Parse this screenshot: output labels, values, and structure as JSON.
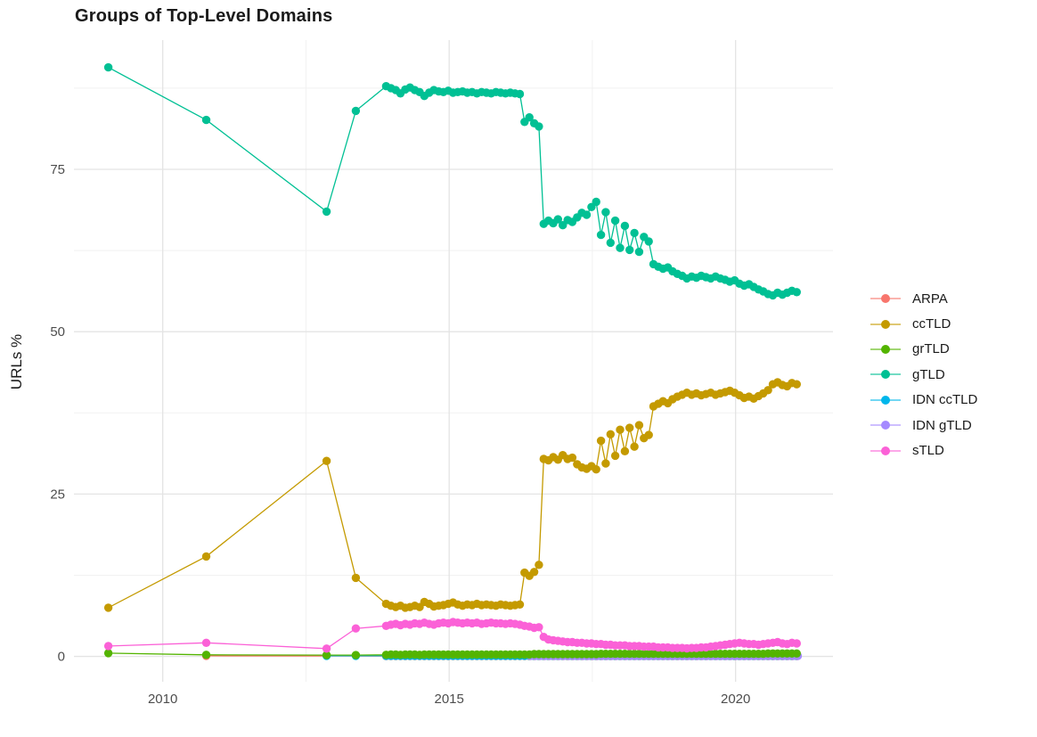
{
  "title": "Groups of Top-Level Domains",
  "chart_data": {
    "type": "line",
    "title": "Groups of Top-Level Domains",
    "xlabel": "",
    "ylabel": "URLs %",
    "xlim": [
      2008.45,
      2021.7
    ],
    "ylim": [
      -3.9,
      94.9
    ],
    "x_ticks": [
      {
        "v": 2010,
        "label": "2010"
      },
      {
        "v": 2015,
        "label": "2015"
      },
      {
        "v": 2020,
        "label": "2020"
      }
    ],
    "x_minor_ticks": [
      2012.5,
      2017.5
    ],
    "y_ticks": [
      {
        "v": 0,
        "label": "0"
      },
      {
        "v": 25,
        "label": "25"
      },
      {
        "v": 50,
        "label": "50"
      },
      {
        "v": 75,
        "label": "75"
      }
    ],
    "y_minor_ticks": [
      12.5,
      37.5,
      62.5,
      87.5
    ],
    "grid": true,
    "legend_position": "right",
    "colors": {
      "major_grid": "#e4e4e4",
      "minor_grid": "#f1f1f1",
      "tick_label": "#4d4d4d",
      "title_text": "#1a1a1a"
    },
    "draw_order": [
      "ARPA",
      "IDN ccTLD",
      "IDN gTLD",
      "grTLD",
      "sTLD",
      "ccTLD",
      "gTLD"
    ],
    "series": [
      {
        "name": "ARPA",
        "color": "#F8766D",
        "early": [
          [
            2010.76,
            0.1
          ]
        ],
        "dense": {
          "start": 2013.9,
          "step": 0.08333,
          "const": 0.05,
          "count": 87
        }
      },
      {
        "name": "ccTLD",
        "color": "#C49A00",
        "early": [
          [
            2009.05,
            7.5
          ],
          [
            2010.76,
            15.4
          ],
          [
            2012.86,
            30.1
          ],
          [
            2013.37,
            12.1
          ]
        ],
        "dense": {
          "start": 2013.9,
          "step": 0.08333,
          "values": [
            8.1,
            7.8,
            7.6,
            7.8,
            7.5,
            7.6,
            7.8,
            7.6,
            8.4,
            8.1,
            7.7,
            7.8,
            7.9,
            8.1,
            8.3,
            8.0,
            7.8,
            8.0,
            7.9,
            8.1,
            7.9,
            8.0,
            7.9,
            7.8,
            8.0,
            7.9,
            7.8,
            7.9,
            8.0,
            12.9,
            12.4,
            13.0,
            14.1,
            30.4,
            30.2,
            30.7,
            30.3,
            31.0,
            30.4,
            30.6,
            29.6,
            29.1,
            28.9,
            29.3,
            28.8,
            33.2,
            29.7,
            34.2,
            30.9,
            34.9,
            31.6,
            35.2,
            32.3,
            35.6,
            33.6,
            34.1,
            38.5,
            38.9,
            39.3,
            39.0,
            39.6,
            40.0,
            40.3,
            40.6,
            40.3,
            40.5,
            40.2,
            40.4,
            40.6,
            40.3,
            40.5,
            40.7,
            40.9,
            40.6,
            40.2,
            39.8,
            40.0,
            39.7,
            40.1,
            40.5,
            41.0,
            41.9,
            42.2,
            41.8,
            41.6,
            42.1,
            41.9
          ]
        }
      },
      {
        "name": "grTLD",
        "color": "#53B400",
        "early": [
          [
            2009.05,
            0.5
          ],
          [
            2010.76,
            0.25
          ],
          [
            2012.86,
            0.2
          ],
          [
            2013.37,
            0.2
          ]
        ],
        "dense": {
          "start": 2013.9,
          "step": 0.08333,
          "values": [
            0.25,
            0.3,
            0.3,
            0.25,
            0.3,
            0.3,
            0.3,
            0.25,
            0.3,
            0.3,
            0.3,
            0.3,
            0.3,
            0.3,
            0.3,
            0.3,
            0.3,
            0.3,
            0.3,
            0.3,
            0.3,
            0.3,
            0.3,
            0.3,
            0.3,
            0.3,
            0.3,
            0.3,
            0.3,
            0.3,
            0.3,
            0.35,
            0.35,
            0.35,
            0.35,
            0.35,
            0.35,
            0.35,
            0.35,
            0.35,
            0.35,
            0.35,
            0.35,
            0.35,
            0.35,
            0.4,
            0.4,
            0.4,
            0.4,
            0.4,
            0.4,
            0.4,
            0.4,
            0.4,
            0.4,
            0.4,
            0.4,
            0.4,
            0.4,
            0.4,
            0.4,
            0.4,
            0.4,
            0.4,
            0.4,
            0.4,
            0.4,
            0.4,
            0.4,
            0.4,
            0.4,
            0.4,
            0.4,
            0.4,
            0.4,
            0.4,
            0.4,
            0.4,
            0.4,
            0.4,
            0.45,
            0.45,
            0.45,
            0.45,
            0.45,
            0.45,
            0.45
          ]
        }
      },
      {
        "name": "gTLD",
        "color": "#00C094",
        "early": [
          [
            2009.05,
            90.7
          ],
          [
            2010.76,
            82.6
          ],
          [
            2012.86,
            68.5
          ],
          [
            2013.37,
            84.0
          ]
        ],
        "dense": {
          "start": 2013.9,
          "step": 0.08333,
          "values": [
            87.8,
            87.5,
            87.2,
            86.7,
            87.3,
            87.6,
            87.2,
            86.9,
            86.3,
            86.8,
            87.2,
            87.0,
            86.9,
            87.1,
            86.8,
            86.9,
            87.0,
            86.8,
            86.9,
            86.7,
            86.9,
            86.8,
            86.7,
            86.9,
            86.8,
            86.7,
            86.8,
            86.7,
            86.6,
            82.3,
            83.0,
            82.1,
            81.6,
            66.6,
            67.1,
            66.7,
            67.3,
            66.4,
            67.2,
            66.9,
            67.6,
            68.3,
            68.0,
            69.2,
            70.0,
            64.9,
            68.4,
            63.7,
            67.1,
            62.9,
            66.3,
            62.6,
            65.2,
            62.3,
            64.6,
            63.9,
            60.4,
            60.0,
            59.7,
            59.9,
            59.3,
            58.9,
            58.6,
            58.2,
            58.5,
            58.3,
            58.6,
            58.4,
            58.2,
            58.5,
            58.2,
            58.0,
            57.7,
            57.9,
            57.4,
            57.1,
            57.3,
            56.9,
            56.5,
            56.2,
            55.8,
            55.6,
            56.0,
            55.7,
            56.0,
            56.3,
            56.1
          ]
        }
      },
      {
        "name": "IDN ccTLD",
        "color": "#00B6EB",
        "early": [
          [
            2012.86,
            0.1
          ],
          [
            2013.37,
            0.1
          ]
        ],
        "dense": {
          "start": 2013.9,
          "step": 0.08333,
          "const": 0.1,
          "count": 87
        }
      },
      {
        "name": "IDN gTLD",
        "color": "#A58AFF",
        "early": [],
        "dense": {
          "start": 2016.42,
          "step": 0.08333,
          "const": 0.08,
          "count": 57
        }
      },
      {
        "name": "sTLD",
        "color": "#FB61D7",
        "early": [
          [
            2009.05,
            1.6
          ],
          [
            2010.76,
            2.1
          ],
          [
            2012.86,
            1.2
          ],
          [
            2013.37,
            4.3
          ]
        ],
        "dense": {
          "start": 2013.9,
          "step": 0.08333,
          "values": [
            4.7,
            4.9,
            5.0,
            4.8,
            5.0,
            4.9,
            5.1,
            5.0,
            5.2,
            5.0,
            4.9,
            5.1,
            5.2,
            5.1,
            5.3,
            5.2,
            5.1,
            5.2,
            5.1,
            5.2,
            5.0,
            5.1,
            5.2,
            5.1,
            5.1,
            5.0,
            5.1,
            5.0,
            4.9,
            4.7,
            4.6,
            4.4,
            4.5,
            3.0,
            2.6,
            2.5,
            2.4,
            2.3,
            2.2,
            2.2,
            2.1,
            2.1,
            2.0,
            2.0,
            1.9,
            1.9,
            1.8,
            1.8,
            1.7,
            1.7,
            1.7,
            1.6,
            1.6,
            1.6,
            1.5,
            1.5,
            1.5,
            1.4,
            1.4,
            1.4,
            1.3,
            1.3,
            1.3,
            1.25,
            1.3,
            1.3,
            1.4,
            1.4,
            1.5,
            1.6,
            1.7,
            1.8,
            1.9,
            2.0,
            2.1,
            2.0,
            1.9,
            1.9,
            1.8,
            1.9,
            2.0,
            2.1,
            2.2,
            2.0,
            1.9,
            2.1,
            2.0
          ]
        }
      }
    ]
  }
}
